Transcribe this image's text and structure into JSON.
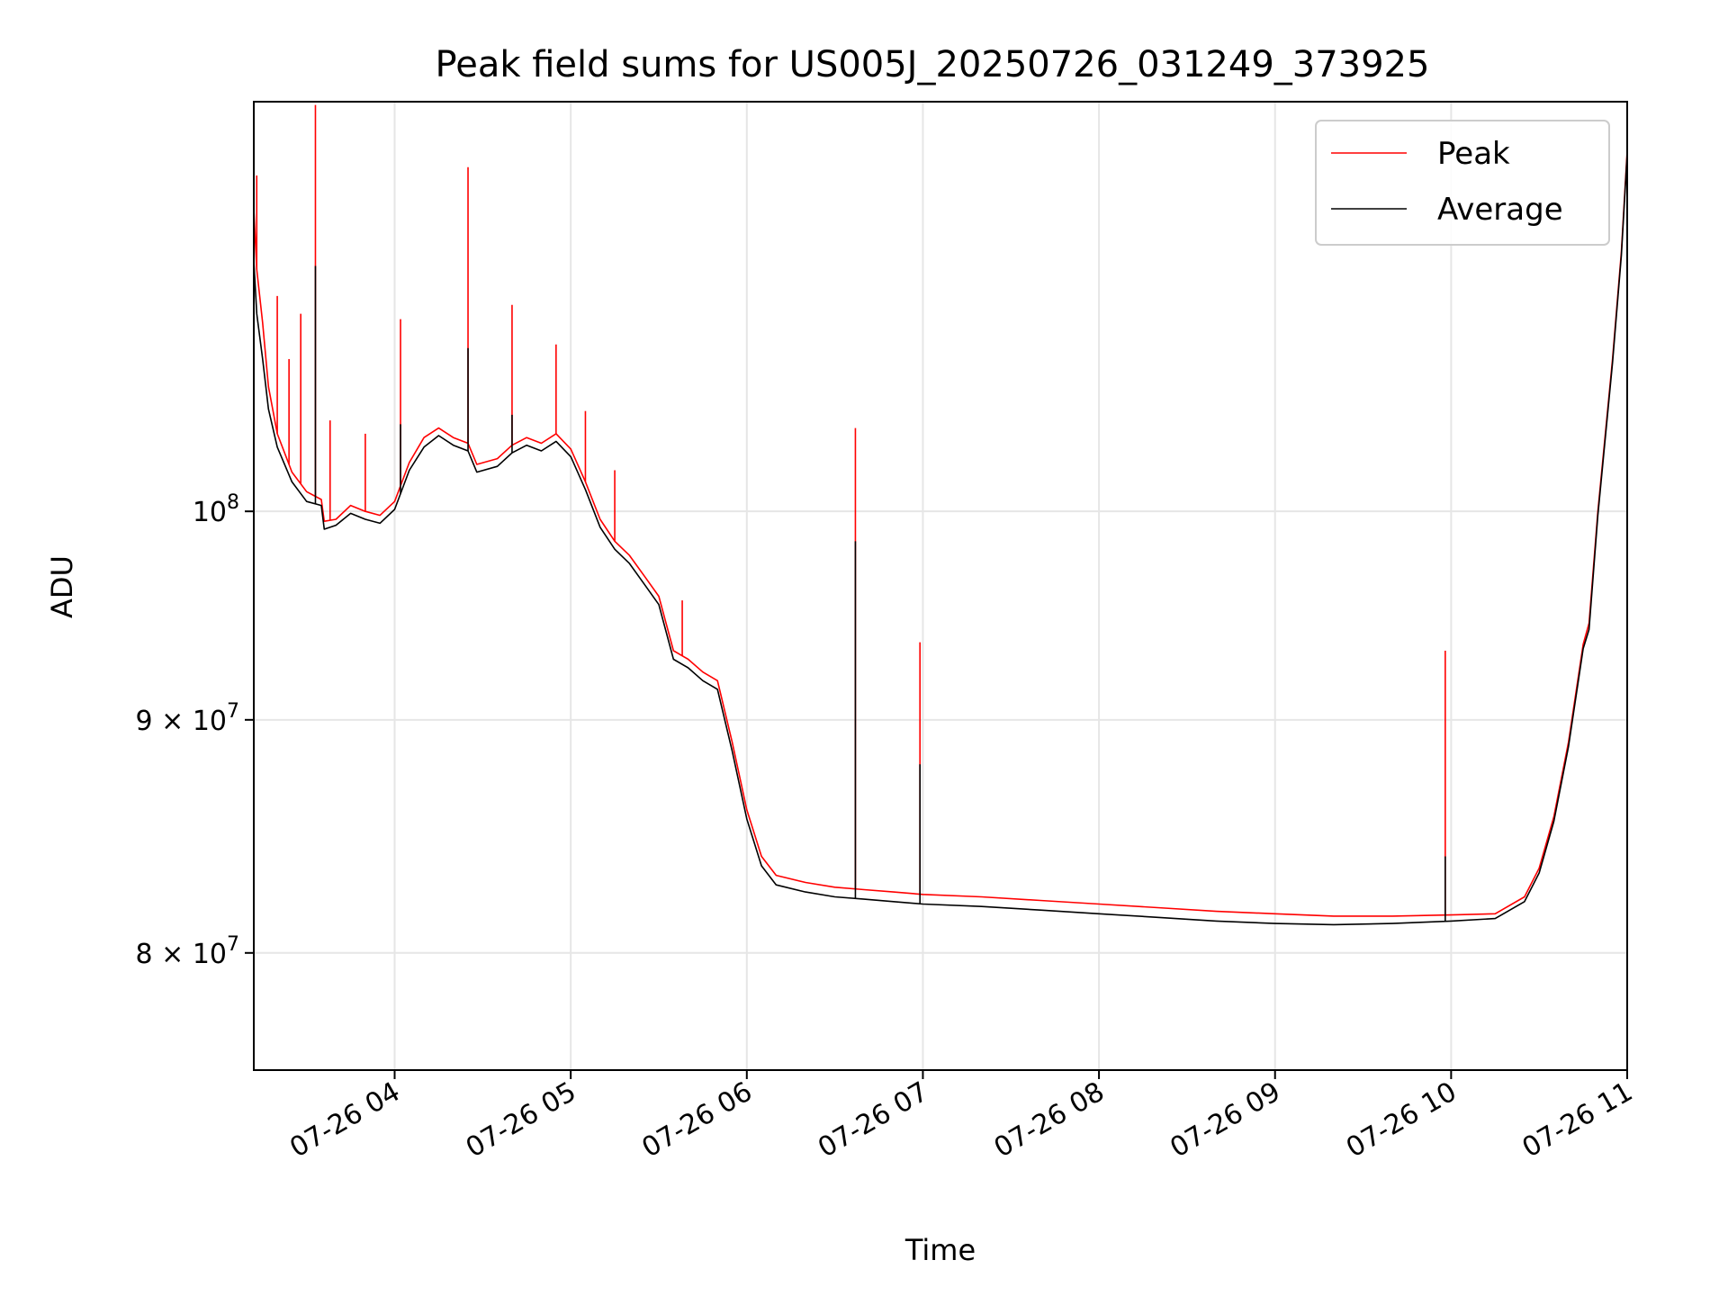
{
  "chart_data": {
    "type": "line",
    "title": "Peak field sums for US005J_20250726_031249_373925",
    "xlabel": "Time",
    "ylabel": "ADU",
    "xlim": [
      "07-26 03:12",
      "07-26 11:00"
    ],
    "ylim": [
      75400000,
      123000000
    ],
    "yscale": "log",
    "grid": true,
    "legend_position": "top-right",
    "x_ticks": [
      "07-26 04",
      "07-26 05",
      "07-26 06",
      "07-26 07",
      "07-26 08",
      "07-26 09",
      "07-26 10",
      "07-26 11"
    ],
    "y_ticks": [
      {
        "value": 100000000,
        "mantissa": "",
        "base": "10",
        "exp": "8"
      },
      {
        "value": 90000000,
        "mantissa": "9 × ",
        "base": "10",
        "exp": "7"
      },
      {
        "value": 80000000,
        "mantissa": "8 × ",
        "base": "10",
        "exp": "7"
      }
    ],
    "series": [
      {
        "name": "Peak",
        "color": "#ff0000",
        "points": [
          [
            "03:12",
            116500000
          ],
          [
            "03:13",
            113000000
          ],
          [
            "03:15",
            110000000
          ],
          [
            "03:17",
            106500000
          ],
          [
            "03:20",
            104000000
          ],
          [
            "03:25",
            102000000
          ],
          [
            "03:30",
            101000000
          ],
          [
            "03:35",
            100600000
          ],
          [
            "03:36",
            99500000
          ],
          [
            "03:40",
            99600000
          ],
          [
            "03:45",
            100300000
          ],
          [
            "03:50",
            100000000
          ],
          [
            "03:55",
            99800000
          ],
          [
            "04:00",
            100500000
          ],
          [
            "04:05",
            102500000
          ],
          [
            "04:10",
            103800000
          ],
          [
            "04:15",
            104300000
          ],
          [
            "04:20",
            103800000
          ],
          [
            "04:25",
            103500000
          ],
          [
            "04:28",
            102400000
          ],
          [
            "04:35",
            102700000
          ],
          [
            "04:40",
            103400000
          ],
          [
            "04:45",
            103800000
          ],
          [
            "04:50",
            103500000
          ],
          [
            "04:55",
            104000000
          ],
          [
            "05:00",
            103200000
          ],
          [
            "05:05",
            101500000
          ],
          [
            "05:10",
            99600000
          ],
          [
            "05:15",
            98500000
          ],
          [
            "05:20",
            97800000
          ],
          [
            "05:25",
            96800000
          ],
          [
            "05:30",
            95800000
          ],
          [
            "05:35",
            93200000
          ],
          [
            "05:40",
            92800000
          ],
          [
            "05:45",
            92200000
          ],
          [
            "05:50",
            91800000
          ],
          [
            "05:55",
            89000000
          ],
          [
            "06:00",
            86000000
          ],
          [
            "06:05",
            84000000
          ],
          [
            "06:10",
            83200000
          ],
          [
            "06:20",
            82900000
          ],
          [
            "06:30",
            82700000
          ],
          [
            "06:40",
            82600000
          ],
          [
            "06:50",
            82500000
          ],
          [
            "07:00",
            82400000
          ],
          [
            "07:20",
            82300000
          ],
          [
            "07:40",
            82150000
          ],
          [
            "08:00",
            82000000
          ],
          [
            "08:20",
            81850000
          ],
          [
            "08:40",
            81700000
          ],
          [
            "09:00",
            81600000
          ],
          [
            "09:20",
            81500000
          ],
          [
            "09:40",
            81500000
          ],
          [
            "10:00",
            81550000
          ],
          [
            "10:15",
            81600000
          ],
          [
            "10:25",
            82300000
          ],
          [
            "10:30",
            83500000
          ],
          [
            "10:35",
            85700000
          ],
          [
            "10:40",
            89000000
          ],
          [
            "10:45",
            93500000
          ],
          [
            "10:47",
            94500000
          ],
          [
            "10:50",
            100000000
          ],
          [
            "10:55",
            108000000
          ],
          [
            "10:58",
            114000000
          ],
          [
            "11:00",
            120000000
          ]
        ],
        "spikes": [
          [
            "03:13",
            118500000
          ],
          [
            "03:20",
            111500000
          ],
          [
            "03:24",
            108000000
          ],
          [
            "03:28",
            110500000
          ],
          [
            "03:33",
            122800000
          ],
          [
            "03:38",
            104700000
          ],
          [
            "03:50",
            104000000
          ],
          [
            "04:02",
            110200000
          ],
          [
            "04:25",
            119000000
          ],
          [
            "04:40",
            111000000
          ],
          [
            "04:55",
            108800000
          ],
          [
            "05:05",
            105200000
          ],
          [
            "05:15",
            102100000
          ],
          [
            "05:38",
            95600000
          ],
          [
            "06:37",
            104300000
          ],
          [
            "06:59",
            93600000
          ],
          [
            "09:58",
            93200000
          ]
        ]
      },
      {
        "name": "Average",
        "color": "#000000",
        "points": [
          [
            "03:12",
            113500000
          ],
          [
            "03:13",
            110500000
          ],
          [
            "03:15",
            108000000
          ],
          [
            "03:17",
            105300000
          ],
          [
            "03:20",
            103300000
          ],
          [
            "03:25",
            101500000
          ],
          [
            "03:30",
            100500000
          ],
          [
            "03:35",
            100300000
          ],
          [
            "03:36",
            99100000
          ],
          [
            "03:40",
            99300000
          ],
          [
            "03:45",
            99900000
          ],
          [
            "03:50",
            99600000
          ],
          [
            "03:55",
            99400000
          ],
          [
            "04:00",
            100100000
          ],
          [
            "04:05",
            102100000
          ],
          [
            "04:10",
            103300000
          ],
          [
            "04:15",
            103900000
          ],
          [
            "04:20",
            103400000
          ],
          [
            "04:25",
            103100000
          ],
          [
            "04:28",
            102000000
          ],
          [
            "04:35",
            102300000
          ],
          [
            "04:40",
            103000000
          ],
          [
            "04:45",
            103400000
          ],
          [
            "04:50",
            103100000
          ],
          [
            "04:55",
            103600000
          ],
          [
            "05:00",
            102800000
          ],
          [
            "05:05",
            101100000
          ],
          [
            "05:10",
            99200000
          ],
          [
            "05:15",
            98100000
          ],
          [
            "05:20",
            97400000
          ],
          [
            "05:25",
            96400000
          ],
          [
            "05:30",
            95400000
          ],
          [
            "05:35",
            92800000
          ],
          [
            "05:40",
            92400000
          ],
          [
            "05:45",
            91800000
          ],
          [
            "05:50",
            91400000
          ],
          [
            "05:55",
            88600000
          ],
          [
            "06:00",
            85600000
          ],
          [
            "06:05",
            83600000
          ],
          [
            "06:10",
            82800000
          ],
          [
            "06:20",
            82500000
          ],
          [
            "06:30",
            82300000
          ],
          [
            "06:40",
            82200000
          ],
          [
            "06:50",
            82100000
          ],
          [
            "07:00",
            82000000
          ],
          [
            "07:20",
            81900000
          ],
          [
            "07:40",
            81750000
          ],
          [
            "08:00",
            81600000
          ],
          [
            "08:20",
            81450000
          ],
          [
            "08:40",
            81300000
          ],
          [
            "09:00",
            81200000
          ],
          [
            "09:20",
            81150000
          ],
          [
            "09:40",
            81200000
          ],
          [
            "10:00",
            81300000
          ],
          [
            "10:15",
            81400000
          ],
          [
            "10:25",
            82100000
          ],
          [
            "10:30",
            83300000
          ],
          [
            "10:35",
            85500000
          ],
          [
            "10:40",
            88800000
          ],
          [
            "10:45",
            93300000
          ],
          [
            "10:47",
            94200000
          ],
          [
            "10:50",
            99800000
          ],
          [
            "10:55",
            107800000
          ],
          [
            "10:58",
            113800000
          ],
          [
            "11:00",
            119800000
          ]
        ],
        "spikes": [
          [
            "03:33",
            113200000
          ],
          [
            "04:02",
            104500000
          ],
          [
            "04:25",
            108600000
          ],
          [
            "04:40",
            105000000
          ],
          [
            "06:37",
            98500000
          ],
          [
            "06:59",
            88000000
          ],
          [
            "09:58",
            84000000
          ]
        ]
      }
    ]
  }
}
